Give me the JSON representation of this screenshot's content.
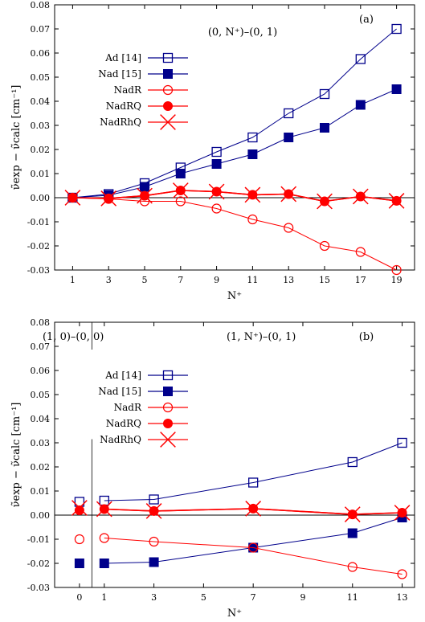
{
  "chart_data": [
    {
      "panel_label": "(a)",
      "type": "line",
      "annotation": "(0, N⁺)–(0, 1)",
      "xlabel": "N⁺",
      "ylabel": "ν̃exp − ν̃calc [cm⁻¹]",
      "xlim": [
        0,
        20
      ],
      "ylim": [
        -0.03,
        0.08
      ],
      "xticks": [
        1,
        3,
        5,
        7,
        9,
        11,
        13,
        15,
        17,
        19
      ],
      "yticks": [
        "-0.03",
        "-0.02",
        "-0.01",
        "0.00",
        "0.01",
        "0.02",
        "0.03",
        "0.04",
        "0.05",
        "0.06",
        "0.07",
        "0.08"
      ],
      "legend_position": "left",
      "x": [
        1,
        3,
        5,
        7,
        9,
        11,
        13,
        15,
        17,
        19
      ],
      "series": [
        {
          "name": "Ad [14]",
          "marker": "open-square",
          "color": "#00008b",
          "values": [
            0.0,
            0.0015,
            0.006,
            0.0125,
            0.019,
            0.025,
            0.035,
            0.043,
            0.0575,
            0.07
          ]
        },
        {
          "name": "Nad [15]",
          "marker": "filled-square",
          "color": "#00008b",
          "values": [
            0.0,
            0.001,
            0.0045,
            0.01,
            0.014,
            0.018,
            0.025,
            0.029,
            0.0385,
            0.045
          ]
        },
        {
          "name": "NadR",
          "marker": "open-circle",
          "color": "#ff0000",
          "values": [
            0.0,
            -0.0005,
            -0.0015,
            -0.0015,
            -0.0045,
            -0.009,
            -0.0125,
            -0.02,
            -0.0225,
            -0.03
          ]
        },
        {
          "name": "NadRQ",
          "marker": "filled-circle",
          "color": "#ff0000",
          "values": [
            0.0,
            -0.0003,
            0.0008,
            0.003,
            0.0025,
            0.0012,
            0.0015,
            -0.0015,
            0.0005,
            -0.0013
          ]
        },
        {
          "name": "NadRhQ",
          "marker": "cross",
          "color": "#ff0000",
          "values": [
            0.0,
            -0.0003,
            0.0008,
            0.003,
            0.0025,
            0.0012,
            0.0015,
            -0.0015,
            0.0005,
            -0.0013
          ]
        }
      ]
    },
    {
      "panel_label": "(b)",
      "type": "line",
      "annotation_left": "(1, 0)–(0, 0)",
      "annotation_right": "(1, N⁺)–(0, 1)",
      "xlabel": "N⁺",
      "ylabel": "ν̃exp − ν̃calc [cm⁻¹]",
      "xlim": [
        -1,
        13.5
      ],
      "ylim": [
        -0.03,
        0.08
      ],
      "xticks": [
        0,
        1,
        3,
        5,
        7,
        9,
        11,
        13
      ],
      "yticks": [
        "-0.03",
        "-0.02",
        "-0.01",
        "0.00",
        "0.01",
        "0.02",
        "0.03",
        "0.04",
        "0.05",
        "0.06",
        "0.07",
        "0.08"
      ],
      "legend_position": "left",
      "x": [
        1,
        3,
        7,
        11,
        13
      ],
      "x0": 0,
      "series": [
        {
          "name": "Ad [14]",
          "marker": "open-square",
          "color": "#00008b",
          "x0_value": 0.0055,
          "values": [
            0.006,
            0.0065,
            0.0135,
            0.022,
            0.03
          ]
        },
        {
          "name": "Nad [15]",
          "marker": "filled-square",
          "color": "#00008b",
          "x0_value": -0.02,
          "values": [
            -0.02,
            -0.0195,
            -0.0135,
            -0.0075,
            -0.001
          ]
        },
        {
          "name": "NadR",
          "marker": "open-circle",
          "color": "#ff0000",
          "x0_value": -0.01,
          "values": [
            -0.0095,
            -0.011,
            -0.0135,
            -0.0215,
            -0.0245
          ]
        },
        {
          "name": "NadRQ",
          "marker": "filled-circle",
          "color": "#ff0000",
          "x0_value": 0.002,
          "values": [
            0.0025,
            0.0017,
            0.0027,
            0.0003,
            0.001
          ]
        },
        {
          "name": "NadRhQ",
          "marker": "cross",
          "color": "#ff0000",
          "x0_value": 0.003,
          "values": [
            0.0025,
            0.0017,
            0.0027,
            0.0003,
            0.001
          ]
        }
      ]
    }
  ]
}
